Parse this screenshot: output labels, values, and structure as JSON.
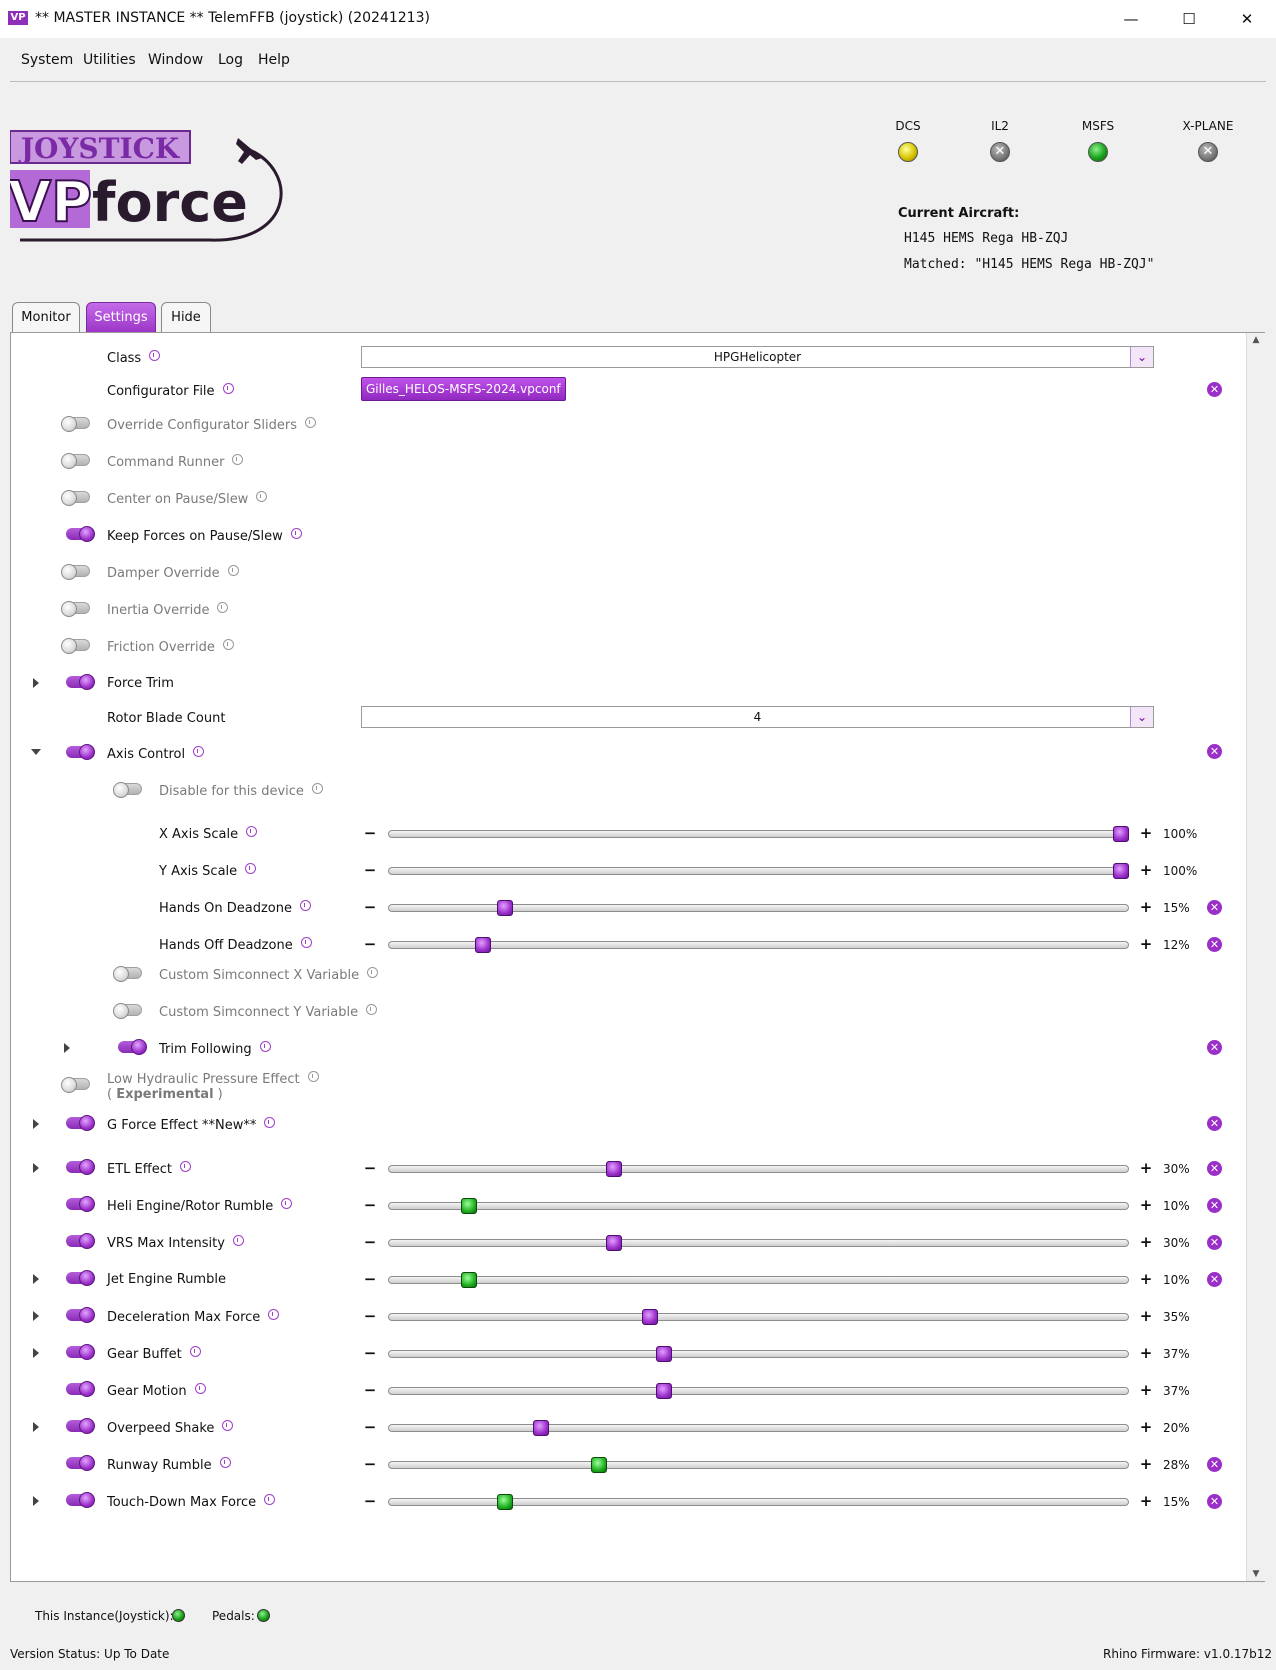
{
  "window": {
    "icon_text": "VP",
    "title": "** MASTER INSTANCE ** TelemFFB (joystick) (20241213)",
    "minimize": "—",
    "maximize": "☐",
    "close": "✕"
  },
  "menu": [
    "System",
    "Utilities",
    "Window",
    "Log",
    "Help"
  ],
  "sims": [
    {
      "label": "DCS",
      "state": "yellow"
    },
    {
      "label": "IL2",
      "state": "off"
    },
    {
      "label": "MSFS",
      "state": "green"
    },
    {
      "label": "X-PLANE",
      "state": "off"
    }
  ],
  "aircraft": {
    "heading": "Current Aircraft:",
    "name": "H145 HEMS Rega HB-ZQJ",
    "matched": "Matched: \"H145 HEMS Rega HB-ZQJ\""
  },
  "tabs": [
    "Monitor",
    "Settings",
    "Hide"
  ],
  "active_tab": "Settings",
  "settings": {
    "class_label": "Class",
    "class_value": "HPGHelicopter",
    "config_label": "Configurator File",
    "config_file": "Gilles_HELOS-MSFS-2024.vpconf",
    "rotor_label": "Rotor Blade Count",
    "rotor_value": "4",
    "toggles": {
      "override_sliders": "Override Configurator Sliders",
      "command_runner": "Command Runner",
      "center_on_pause": "Center on Pause/Slew",
      "keep_forces": "Keep Forces on Pause/Slew",
      "damper_override": "Damper Override",
      "inertia_override": "Inertia Override",
      "friction_override": "Friction Override",
      "force_trim": "Force Trim",
      "axis_control": "Axis Control",
      "disable_device": "Disable for this device",
      "custom_x": "Custom Simconnect X Variable",
      "custom_y": "Custom Simconnect Y Variable",
      "trim_following": "Trim Following",
      "low_hydraulic": "Low Hydraulic Pressure Effect",
      "experimental_open": "( ",
      "experimental": "Experimental",
      "experimental_close": " )",
      "g_force": "G Force Effect **New**"
    },
    "sliders": [
      {
        "label": "X Axis Scale",
        "value": "100%",
        "fraction": 1.0,
        "color": "purple"
      },
      {
        "label": "Y Axis Scale",
        "value": "100%",
        "fraction": 1.0,
        "color": "purple"
      },
      {
        "label": "Hands On Deadzone",
        "value": "15%",
        "fraction": 0.15,
        "color": "purple"
      },
      {
        "label": "Hands Off Deadzone",
        "value": "12%",
        "fraction": 0.12,
        "color": "purple"
      },
      {
        "label": "ETL Effect",
        "value": "30%",
        "fraction": 0.3,
        "color": "purple"
      },
      {
        "label": "Heli Engine/Rotor Rumble",
        "value": "10%",
        "fraction": 0.1,
        "color": "green"
      },
      {
        "label": "VRS Max Intensity",
        "value": "30%",
        "fraction": 0.3,
        "color": "purple"
      },
      {
        "label": "Jet Engine Rumble",
        "value": "10%",
        "fraction": 0.1,
        "color": "green"
      },
      {
        "label": "Deceleration Max Force",
        "value": "35%",
        "fraction": 0.35,
        "color": "purple"
      },
      {
        "label": "Gear Buffet",
        "value": "37%",
        "fraction": 0.37,
        "color": "purple"
      },
      {
        "label": "Gear Motion",
        "value": "37%",
        "fraction": 0.37,
        "color": "purple"
      },
      {
        "label": "Overpeed Shake",
        "value": "20%",
        "fraction": 0.2,
        "color": "purple"
      },
      {
        "label": "Runway Rumble",
        "value": "28%",
        "fraction": 0.28,
        "color": "green"
      },
      {
        "label": "Touch-Down Max Force",
        "value": "15%",
        "fraction": 0.15,
        "color": "green"
      }
    ],
    "minus": "−",
    "plus": "+",
    "clear": "✕"
  },
  "status": {
    "instance_label": "This Instance(Joystick):",
    "pedals_label": "Pedals:",
    "version": "Version Status: Up To Date",
    "firmware": "Rhino Firmware: v1.0.17b12"
  },
  "logo": {
    "top_text": "JOYSTICK",
    "vp": "VP",
    "force": "force"
  }
}
